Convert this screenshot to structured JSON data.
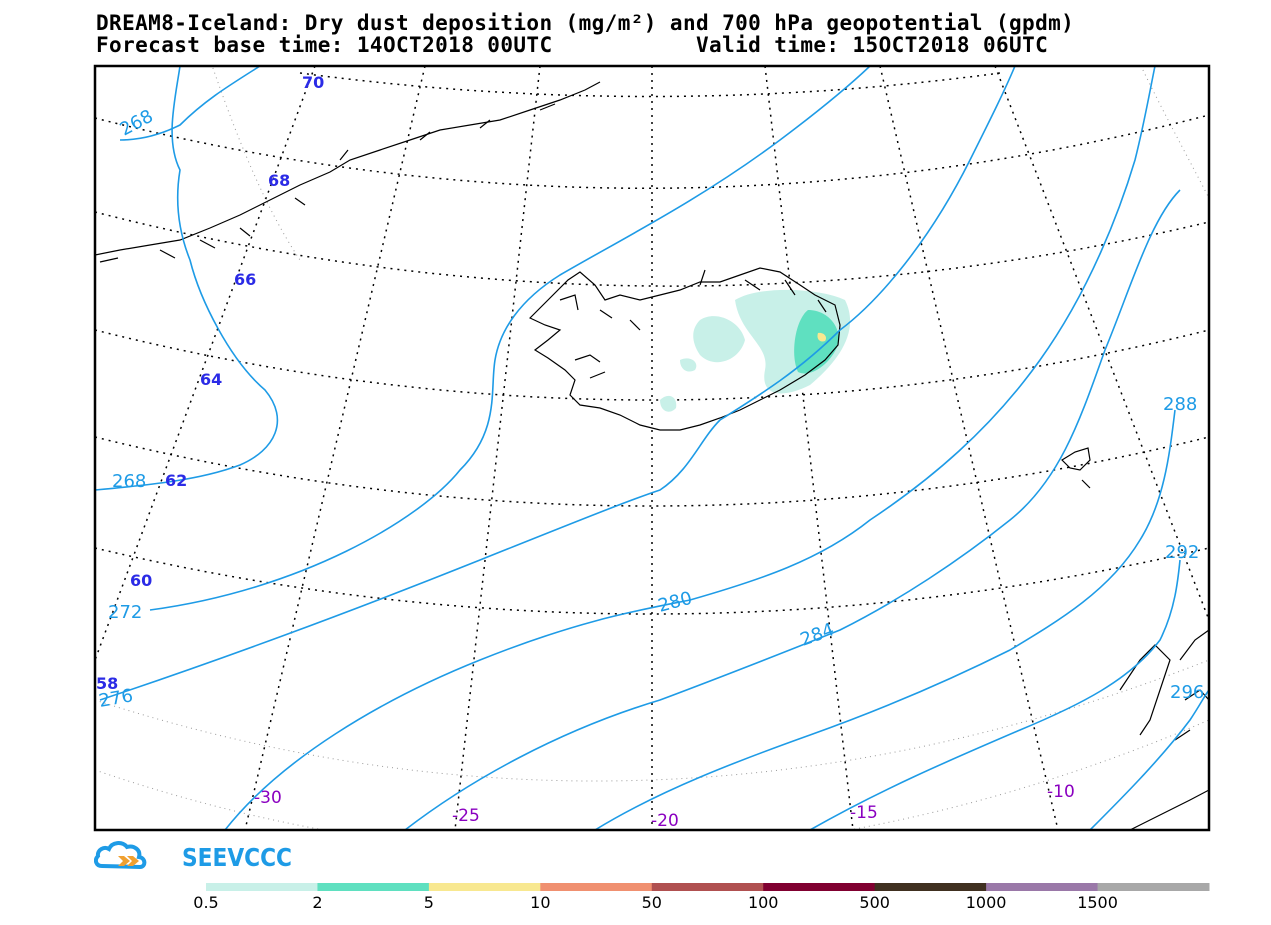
{
  "header": {
    "title": "DREAM8-Iceland: Dry dust deposition (mg/m²) and 700 hPa geopotential (gpdm)",
    "base_time": "Forecast base time: 14OCT2018 00UTC",
    "valid_time": "Valid time: 15OCT2018 06UTC"
  },
  "map": {
    "latitude_labels": [
      "70",
      "68",
      "66",
      "64",
      "62",
      "60",
      "58"
    ],
    "longitude_labels": [
      "-30",
      "-25",
      "-20",
      "-15",
      "-10"
    ],
    "contour_labels": [
      "268",
      "268",
      "272",
      "276",
      "280",
      "284",
      "288",
      "292",
      "296"
    ],
    "dust_cells": [
      {
        "color": "#c8f0e8"
      },
      {
        "color": "#c8f0e8"
      },
      {
        "color": "#5fe0c0"
      },
      {
        "color": "#f8e890"
      }
    ],
    "colors": {
      "contour": "#1e9be6",
      "lat_label": "#2b2be6",
      "lon_label": "#8a00c0",
      "grid": "#000000"
    }
  },
  "logo": {
    "text": "SEEVCCC",
    "color": "#1e9be6",
    "icon": "cloud-icon"
  },
  "legend": {
    "labels": [
      "0.5",
      "2",
      "5",
      "10",
      "50",
      "100",
      "500",
      "1000",
      "1500"
    ],
    "colors": [
      "#c8f0e8",
      "#5fe0c0",
      "#f8e890",
      "#f09070",
      "#b05050",
      "#800030",
      "#403020",
      "#9a78a8",
      "#a8a8a8"
    ]
  }
}
